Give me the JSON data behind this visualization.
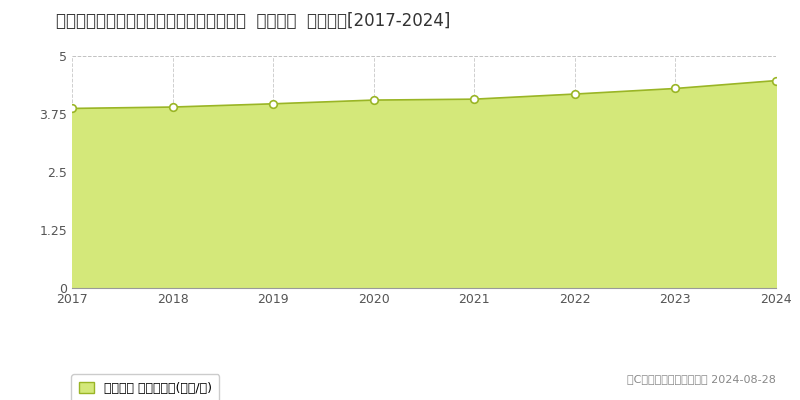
{
  "title": "鴥取県米子市西福原７丁目１０６２番１外  地価公示  地価推移[2017-2024]",
  "years": [
    2017,
    2018,
    2019,
    2020,
    2021,
    2022,
    2023,
    2024
  ],
  "values": [
    3.87,
    3.9,
    3.97,
    4.05,
    4.07,
    4.18,
    4.3,
    4.47
  ],
  "ylim": [
    0,
    5
  ],
  "yticks": [
    0,
    1.25,
    2.5,
    3.75,
    5
  ],
  "ytick_labels": [
    "0",
    "1.25",
    "2.5",
    "3.75",
    "5"
  ],
  "line_color": "#9ab526",
  "fill_color": "#d4e87a",
  "fill_alpha": 1.0,
  "marker_facecolor": "#ffffff",
  "marker_edgecolor": "#9ab526",
  "grid_color": "#bbbbbb",
  "bg_color": "#ffffff",
  "plot_bg_color": "#ffffff",
  "legend_label": "地価公示 平均坪単価(万円/坪)",
  "copyright_text": "（C）土地価格ドットコム 2024-08-28",
  "title_fontsize": 12,
  "axis_fontsize": 9,
  "legend_fontsize": 9,
  "copyright_fontsize": 8
}
